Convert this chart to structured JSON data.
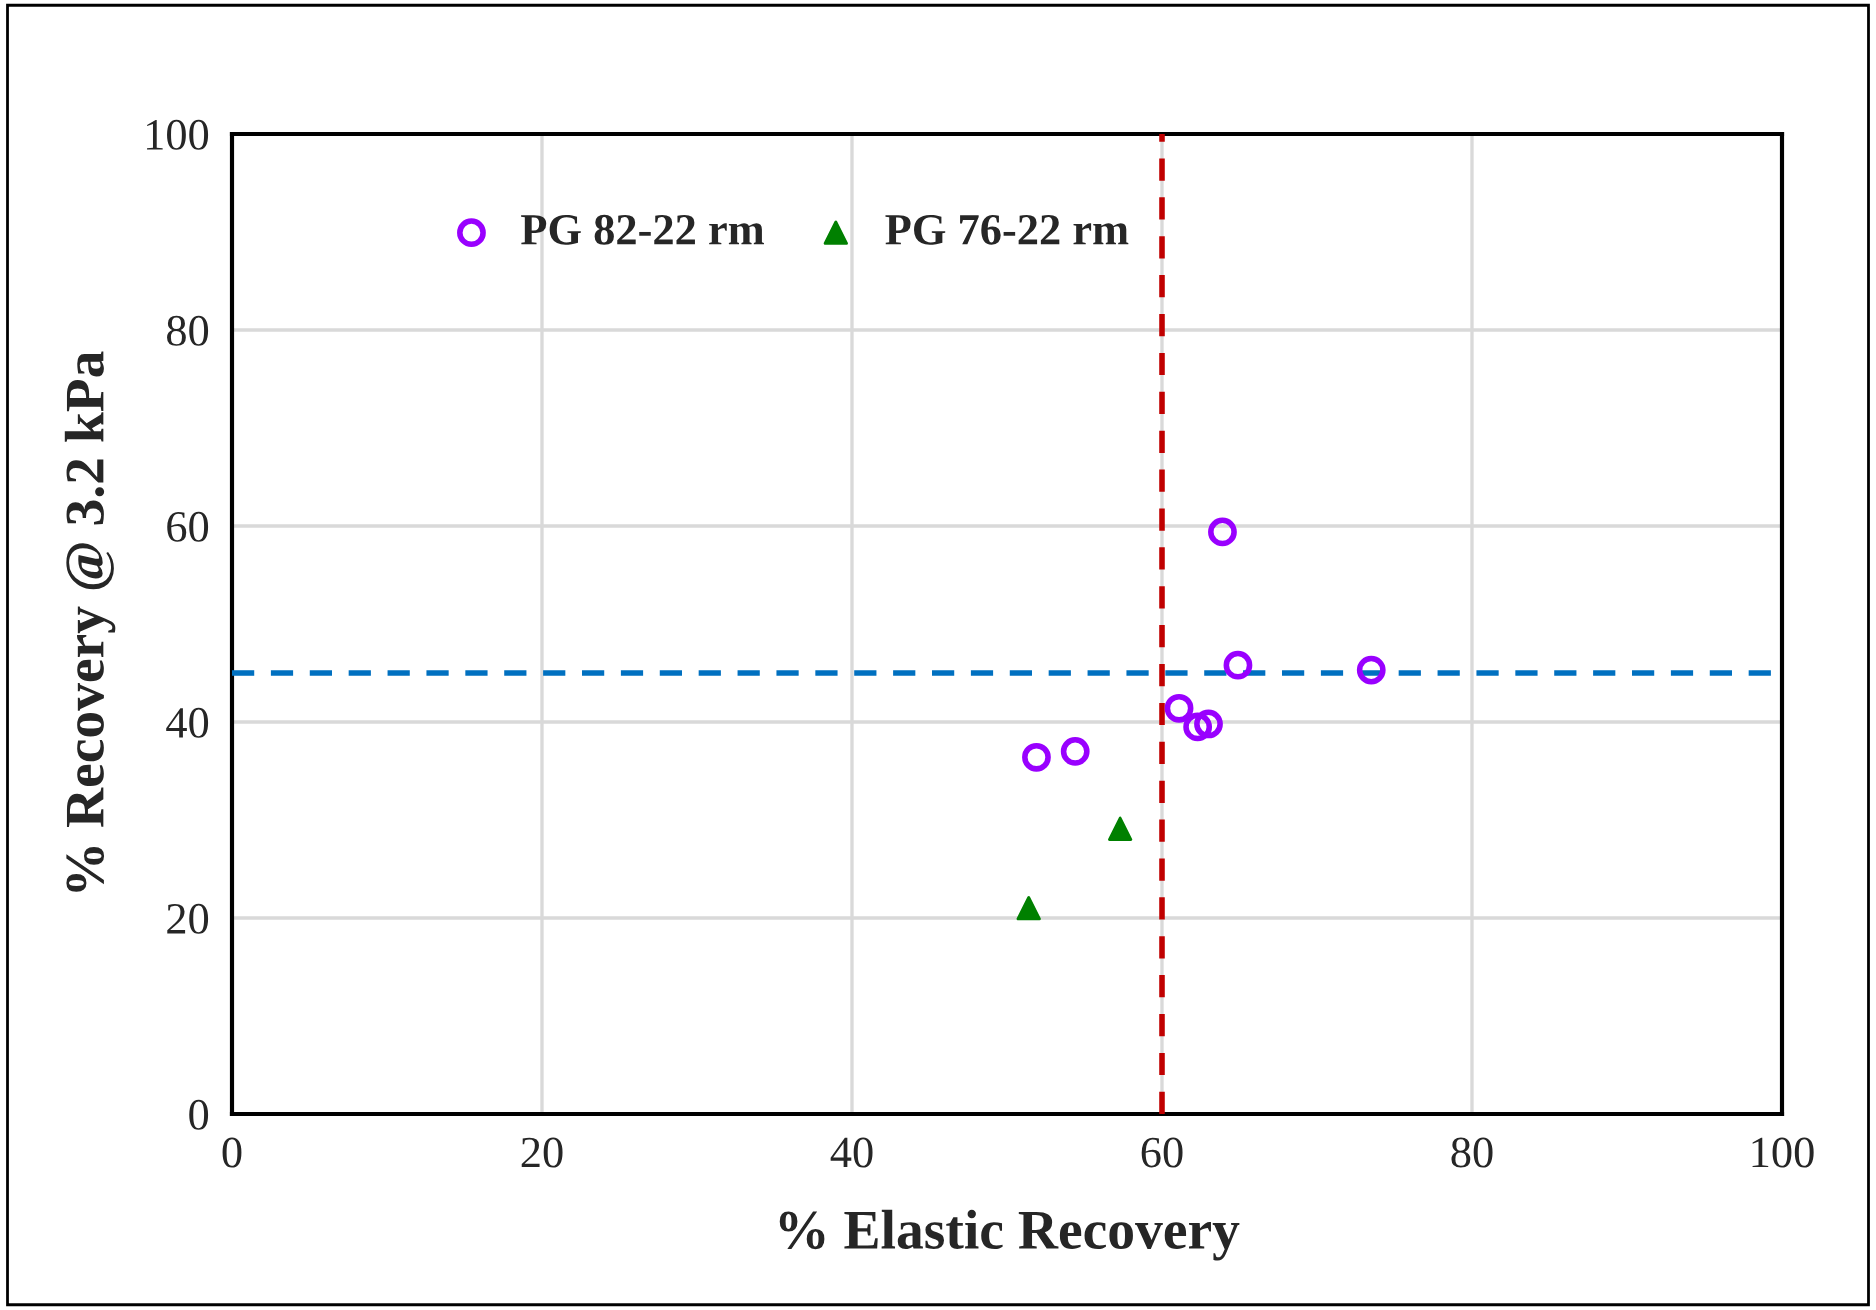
{
  "chart_data": {
    "type": "scatter",
    "xlabel": "% Elastic Recovery",
    "ylabel": "% Recovery @ 3.2 kPa",
    "series": [
      {
        "name": "PG 82-22 rm",
        "color": "#9900ff",
        "marker": "circle",
        "x": [
          51.9,
          54.4,
          61.1,
          62.3,
          63.0,
          63.9,
          64.9,
          73.5
        ],
        "values": [
          36.4,
          37.0,
          41.4,
          39.5,
          39.8,
          59.4,
          45.8,
          45.3
        ]
      },
      {
        "name": "PG 76-22 rm",
        "color": "#008000",
        "marker": "triangle",
        "x": [
          51.4,
          57.3
        ],
        "values": [
          21.0,
          29.1
        ]
      }
    ],
    "xlim": [
      0,
      100
    ],
    "ylim": [
      0,
      100
    ],
    "xticks": [
      0,
      20,
      40,
      60,
      80,
      100
    ],
    "yticks": [
      0,
      20,
      40,
      60,
      80,
      100
    ],
    "ref_lines": [
      {
        "axis": "x",
        "value": 60,
        "color": "#c00000",
        "line_style": "dashed"
      },
      {
        "axis": "y",
        "value": 45,
        "color": "#0070c0",
        "line_style": "dashed"
      }
    ],
    "grid": true,
    "legend": "top left"
  }
}
